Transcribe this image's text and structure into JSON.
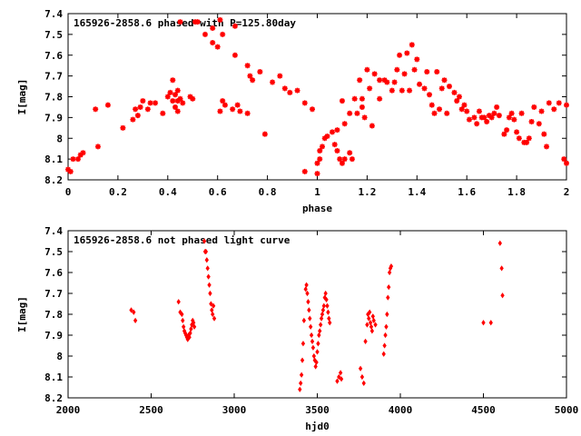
{
  "chart_data": [
    {
      "type": "scatter",
      "title": "165926-2858.6 phased with P=125.80day",
      "xlabel": "phase",
      "ylabel": "I[mag]",
      "xlim": [
        0,
        2
      ],
      "ylim": [
        8.2,
        7.4
      ],
      "y_inverted": true,
      "grid": false,
      "marker_color": "#ff0000",
      "marker": "star",
      "x_ticks": [
        "0",
        "0.2",
        "0.4",
        "0.6",
        "0.8",
        "1",
        "1.2",
        "1.4",
        "1.6",
        "1.8",
        "2"
      ],
      "x_tick_values": [
        0,
        0.2,
        0.4,
        0.6,
        0.8,
        1,
        1.2,
        1.4,
        1.6,
        1.8,
        2
      ],
      "y_ticks": [
        "7.4",
        "7.5",
        "7.6",
        "7.7",
        "7.8",
        "7.9",
        "8",
        "8.1",
        "8.2"
      ],
      "y_tick_values": [
        7.4,
        7.5,
        7.6,
        7.7,
        7.8,
        7.9,
        8.0,
        8.1,
        8.2
      ],
      "points": [
        [
          0.0,
          8.15
        ],
        [
          0.01,
          8.16
        ],
        [
          0.02,
          8.1
        ],
        [
          0.04,
          8.1
        ],
        [
          0.05,
          8.08
        ],
        [
          0.06,
          8.07
        ],
        [
          0.11,
          7.86
        ],
        [
          0.12,
          8.04
        ],
        [
          0.16,
          7.84
        ],
        [
          0.22,
          7.95
        ],
        [
          0.26,
          7.91
        ],
        [
          0.27,
          7.86
        ],
        [
          0.28,
          7.89
        ],
        [
          0.29,
          7.85
        ],
        [
          0.3,
          7.82
        ],
        [
          0.32,
          7.86
        ],
        [
          0.33,
          7.83
        ],
        [
          0.35,
          7.83
        ],
        [
          0.38,
          7.88
        ],
        [
          0.4,
          7.8
        ],
        [
          0.41,
          7.78
        ],
        [
          0.42,
          7.72
        ],
        [
          0.42,
          7.82
        ],
        [
          0.43,
          7.85
        ],
        [
          0.43,
          7.79
        ],
        [
          0.44,
          7.82
        ],
        [
          0.44,
          7.87
        ],
        [
          0.44,
          7.77
        ],
        [
          0.45,
          7.44
        ],
        [
          0.45,
          7.81
        ],
        [
          0.46,
          7.83
        ],
        [
          0.49,
          7.8
        ],
        [
          0.5,
          7.81
        ],
        [
          0.51,
          7.44
        ],
        [
          0.52,
          7.44
        ],
        [
          0.55,
          7.5
        ],
        [
          0.58,
          7.47
        ],
        [
          0.58,
          7.54
        ],
        [
          0.6,
          7.56
        ],
        [
          0.61,
          7.87
        ],
        [
          0.61,
          7.43
        ],
        [
          0.62,
          7.5
        ],
        [
          0.62,
          7.82
        ],
        [
          0.63,
          7.84
        ],
        [
          0.66,
          7.86
        ],
        [
          0.67,
          7.46
        ],
        [
          0.67,
          7.6
        ],
        [
          0.68,
          7.84
        ],
        [
          0.69,
          7.87
        ],
        [
          0.72,
          7.65
        ],
        [
          0.72,
          7.88
        ],
        [
          0.73,
          7.7
        ],
        [
          0.74,
          7.72
        ],
        [
          0.77,
          7.68
        ],
        [
          0.79,
          7.98
        ],
        [
          0.82,
          7.73
        ],
        [
          0.85,
          7.7
        ],
        [
          0.87,
          7.76
        ],
        [
          0.89,
          7.78
        ],
        [
          0.92,
          7.77
        ],
        [
          0.95,
          7.83
        ],
        [
          0.95,
          8.16
        ],
        [
          0.98,
          7.86
        ],
        [
          1.0,
          8.12
        ],
        [
          1.0,
          8.17
        ],
        [
          1.01,
          8.1
        ],
        [
          1.01,
          8.06
        ],
        [
          1.02,
          8.04
        ],
        [
          1.03,
          8.0
        ],
        [
          1.04,
          7.99
        ],
        [
          1.06,
          7.97
        ],
        [
          1.07,
          8.03
        ],
        [
          1.08,
          7.96
        ],
        [
          1.08,
          8.06
        ],
        [
          1.09,
          8.1
        ],
        [
          1.1,
          8.12
        ],
        [
          1.1,
          7.82
        ],
        [
          1.11,
          8.1
        ],
        [
          1.11,
          7.93
        ],
        [
          1.13,
          7.88
        ],
        [
          1.13,
          8.07
        ],
        [
          1.14,
          8.1
        ],
        [
          1.15,
          7.81
        ],
        [
          1.16,
          7.88
        ],
        [
          1.17,
          7.72
        ],
        [
          1.18,
          7.85
        ],
        [
          1.18,
          7.81
        ],
        [
          1.19,
          7.9
        ],
        [
          1.2,
          7.67
        ],
        [
          1.21,
          7.76
        ],
        [
          1.22,
          7.94
        ],
        [
          1.23,
          7.69
        ],
        [
          1.25,
          7.72
        ],
        [
          1.25,
          7.81
        ],
        [
          1.27,
          7.72
        ],
        [
          1.28,
          7.73
        ],
        [
          1.3,
          7.77
        ],
        [
          1.31,
          7.73
        ],
        [
          1.32,
          7.67
        ],
        [
          1.33,
          7.6
        ],
        [
          1.34,
          7.77
        ],
        [
          1.35,
          7.69
        ],
        [
          1.36,
          7.59
        ],
        [
          1.37,
          7.77
        ],
        [
          1.38,
          7.55
        ],
        [
          1.39,
          7.67
        ],
        [
          1.4,
          7.62
        ],
        [
          1.41,
          7.74
        ],
        [
          1.43,
          7.76
        ],
        [
          1.44,
          7.68
        ],
        [
          1.45,
          7.79
        ],
        [
          1.46,
          7.84
        ],
        [
          1.47,
          7.88
        ],
        [
          1.48,
          7.68
        ],
        [
          1.49,
          7.86
        ],
        [
          1.5,
          7.76
        ],
        [
          1.51,
          7.72
        ],
        [
          1.52,
          7.88
        ],
        [
          1.53,
          7.75
        ],
        [
          1.55,
          7.78
        ],
        [
          1.56,
          7.82
        ],
        [
          1.57,
          7.8
        ],
        [
          1.58,
          7.86
        ],
        [
          1.59,
          7.84
        ],
        [
          1.6,
          7.87
        ],
        [
          1.61,
          7.91
        ],
        [
          1.63,
          7.9
        ],
        [
          1.64,
          7.93
        ],
        [
          1.65,
          7.87
        ],
        [
          1.66,
          7.9
        ],
        [
          1.67,
          7.9
        ],
        [
          1.68,
          7.92
        ],
        [
          1.69,
          7.89
        ],
        [
          1.7,
          7.9
        ],
        [
          1.71,
          7.88
        ],
        [
          1.72,
          7.85
        ],
        [
          1.73,
          7.89
        ],
        [
          1.75,
          7.98
        ],
        [
          1.76,
          7.96
        ],
        [
          1.77,
          7.9
        ],
        [
          1.78,
          7.88
        ],
        [
          1.79,
          7.91
        ],
        [
          1.8,
          7.97
        ],
        [
          1.81,
          8.0
        ],
        [
          1.82,
          7.88
        ],
        [
          1.83,
          8.02
        ],
        [
          1.84,
          8.02
        ],
        [
          1.85,
          8.0
        ],
        [
          1.86,
          7.92
        ],
        [
          1.87,
          7.85
        ],
        [
          1.89,
          7.93
        ],
        [
          1.9,
          7.87
        ],
        [
          1.91,
          7.98
        ],
        [
          1.92,
          8.04
        ],
        [
          1.93,
          7.83
        ],
        [
          1.95,
          7.86
        ],
        [
          1.97,
          7.83
        ],
        [
          1.99,
          8.1
        ],
        [
          2.0,
          8.12
        ],
        [
          2.0,
          7.84
        ]
      ]
    },
    {
      "type": "scatter",
      "title": "165926-2858.6 not phased light curve",
      "xlabel": "hjd0",
      "ylabel": "I[mag]",
      "xlim": [
        2000,
        5000
      ],
      "ylim": [
        8.2,
        7.4
      ],
      "y_inverted": true,
      "grid": false,
      "marker_color": "#ff0000",
      "marker": "diamond",
      "x_ticks": [
        "2000",
        "2500",
        "3000",
        "3500",
        "4000",
        "4500",
        "5000"
      ],
      "x_tick_values": [
        2000,
        2500,
        3000,
        3500,
        4000,
        4500,
        5000
      ],
      "y_ticks": [
        "7.4",
        "7.5",
        "7.6",
        "7.7",
        "7.8",
        "7.9",
        "8",
        "8.1",
        "8.2"
      ],
      "y_tick_values": [
        7.4,
        7.5,
        7.6,
        7.7,
        7.8,
        7.9,
        8.0,
        8.1,
        8.2
      ],
      "points": [
        [
          2380,
          7.78
        ],
        [
          2395,
          7.79
        ],
        [
          2405,
          7.83
        ],
        [
          2665,
          7.74
        ],
        [
          2675,
          7.79
        ],
        [
          2685,
          7.8
        ],
        [
          2690,
          7.83
        ],
        [
          2695,
          7.86
        ],
        [
          2700,
          7.88
        ],
        [
          2705,
          7.89
        ],
        [
          2710,
          7.9
        ],
        [
          2715,
          7.91
        ],
        [
          2720,
          7.92
        ],
        [
          2725,
          7.9
        ],
        [
          2730,
          7.91
        ],
        [
          2735,
          7.89
        ],
        [
          2740,
          7.87
        ],
        [
          2745,
          7.85
        ],
        [
          2750,
          7.83
        ],
        [
          2755,
          7.84
        ],
        [
          2760,
          7.86
        ],
        [
          2820,
          7.45
        ],
        [
          2825,
          7.5
        ],
        [
          2830,
          7.5
        ],
        [
          2835,
          7.54
        ],
        [
          2840,
          7.58
        ],
        [
          2845,
          7.62
        ],
        [
          2850,
          7.66
        ],
        [
          2855,
          7.7
        ],
        [
          2860,
          7.75
        ],
        [
          2865,
          7.78
        ],
        [
          2870,
          7.8
        ],
        [
          2875,
          7.76
        ],
        [
          2880,
          7.82
        ],
        [
          3395,
          8.16
        ],
        [
          3400,
          8.13
        ],
        [
          3405,
          8.09
        ],
        [
          3410,
          8.02
        ],
        [
          3415,
          7.94
        ],
        [
          3420,
          7.83
        ],
        [
          3430,
          7.68
        ],
        [
          3435,
          7.66
        ],
        [
          3440,
          7.7
        ],
        [
          3445,
          7.74
        ],
        [
          3450,
          7.78
        ],
        [
          3455,
          7.82
        ],
        [
          3460,
          7.86
        ],
        [
          3465,
          7.9
        ],
        [
          3470,
          7.93
        ],
        [
          3475,
          7.96
        ],
        [
          3480,
          8.0
        ],
        [
          3485,
          8.02
        ],
        [
          3490,
          8.05
        ],
        [
          3495,
          8.03
        ],
        [
          3500,
          7.98
        ],
        [
          3505,
          7.94
        ],
        [
          3510,
          7.9
        ],
        [
          3515,
          7.88
        ],
        [
          3520,
          7.85
        ],
        [
          3525,
          7.82
        ],
        [
          3530,
          7.8
        ],
        [
          3535,
          7.78
        ],
        [
          3540,
          7.76
        ],
        [
          3545,
          7.72
        ],
        [
          3550,
          7.7
        ],
        [
          3555,
          7.73
        ],
        [
          3560,
          7.76
        ],
        [
          3565,
          7.79
        ],
        [
          3570,
          7.82
        ],
        [
          3575,
          7.84
        ],
        [
          3620,
          8.12
        ],
        [
          3630,
          8.1
        ],
        [
          3640,
          8.08
        ],
        [
          3645,
          8.11
        ],
        [
          3760,
          8.06
        ],
        [
          3770,
          8.1
        ],
        [
          3780,
          8.13
        ],
        [
          3790,
          7.93
        ],
        [
          3800,
          7.85
        ],
        [
          3805,
          7.8
        ],
        [
          3810,
          7.82
        ],
        [
          3815,
          7.79
        ],
        [
          3820,
          7.84
        ],
        [
          3825,
          7.86
        ],
        [
          3830,
          7.88
        ],
        [
          3835,
          7.81
        ],
        [
          3840,
          7.83
        ],
        [
          3850,
          7.85
        ],
        [
          3900,
          7.99
        ],
        [
          3905,
          7.95
        ],
        [
          3910,
          7.9
        ],
        [
          3915,
          7.86
        ],
        [
          3920,
          7.8
        ],
        [
          3925,
          7.72
        ],
        [
          3930,
          7.67
        ],
        [
          3935,
          7.6
        ],
        [
          3940,
          7.58
        ],
        [
          3945,
          7.57
        ],
        [
          4500,
          7.84
        ],
        [
          4545,
          7.84
        ],
        [
          4600,
          7.46
        ],
        [
          4610,
          7.58
        ],
        [
          4615,
          7.71
        ]
      ]
    }
  ]
}
